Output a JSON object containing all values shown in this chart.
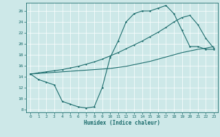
{
  "xlabel": "Humidex (Indice chaleur)",
  "bg_color": "#cde8e8",
  "line_color": "#1a6b6b",
  "grid_color": "#b0d4d4",
  "xlim": [
    -0.5,
    23.5
  ],
  "ylim": [
    7.5,
    27.5
  ],
  "xticks": [
    0,
    1,
    2,
    3,
    4,
    5,
    6,
    7,
    8,
    9,
    10,
    11,
    12,
    13,
    14,
    15,
    16,
    17,
    18,
    19,
    20,
    21,
    22,
    23
  ],
  "yticks": [
    8,
    10,
    12,
    14,
    16,
    18,
    20,
    22,
    24,
    26
  ],
  "curve1_x": [
    0,
    1,
    2,
    3,
    4,
    5,
    6,
    7,
    8,
    9,
    10,
    11,
    12,
    13,
    14,
    15,
    16,
    17,
    18,
    19,
    20,
    21,
    22,
    23
  ],
  "curve1_y": [
    14.5,
    13.5,
    13.0,
    12.5,
    9.5,
    9.0,
    8.5,
    8.3,
    8.5,
    12.0,
    17.5,
    20.5,
    24.0,
    25.5,
    26.0,
    26.0,
    26.5,
    27.0,
    25.5,
    22.5,
    19.5,
    19.5,
    19.0,
    19.0
  ],
  "curve2_x": [
    0,
    1,
    2,
    3,
    4,
    5,
    6,
    7,
    8,
    9,
    10,
    11,
    12,
    13,
    14,
    15,
    16,
    17,
    18,
    19,
    20,
    21,
    22,
    23
  ],
  "curve2_y": [
    14.5,
    14.6,
    14.7,
    14.8,
    14.9,
    15.0,
    15.1,
    15.2,
    15.3,
    15.4,
    15.5,
    15.7,
    15.9,
    16.2,
    16.5,
    16.8,
    17.2,
    17.6,
    18.0,
    18.4,
    18.7,
    19.0,
    19.2,
    19.5
  ],
  "curve3_x": [
    0,
    1,
    2,
    3,
    4,
    5,
    6,
    7,
    8,
    9,
    10,
    11,
    12,
    13,
    14,
    15,
    16,
    17,
    18,
    19,
    20,
    21,
    22,
    23
  ],
  "curve3_y": [
    14.5,
    14.7,
    14.9,
    15.1,
    15.3,
    15.6,
    15.9,
    16.3,
    16.7,
    17.2,
    17.8,
    18.4,
    19.1,
    19.8,
    20.5,
    21.3,
    22.1,
    23.0,
    24.0,
    24.8,
    25.2,
    23.5,
    21.0,
    19.2
  ]
}
